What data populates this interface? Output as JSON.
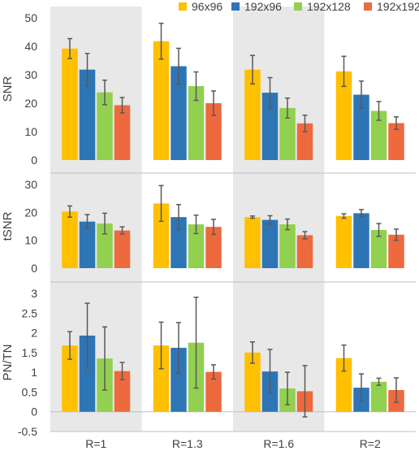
{
  "chart_data": {
    "type": "bar",
    "categories": [
      "R=1",
      "R=1.3",
      "R=1.6",
      "R=2"
    ],
    "legend": {
      "position": "top",
      "entries": [
        "96x96",
        "192x96",
        "192x128",
        "192x192"
      ]
    },
    "colors": [
      "#FFC000",
      "#2E75B6",
      "#92D050",
      "#ED6A3E"
    ],
    "error_bar_color": "#595959",
    "shading_color": "#E8E8E8",
    "shaded_categories": [
      "R=1",
      "R=1.6"
    ],
    "panels": [
      {
        "ylabel": "SNR",
        "ylim": [
          0,
          50
        ],
        "yticks": [
          0,
          10,
          20,
          30,
          40,
          50
        ],
        "yticklabels": [
          "0",
          "10",
          "20",
          "30",
          "40",
          "50"
        ],
        "series": [
          {
            "name": "96x96",
            "values": [
              39.2,
              41.8,
              31.8,
              31.2
            ],
            "errors": [
              3.5,
              6.3,
              5.0,
              5.3
            ]
          },
          {
            "name": "192x96",
            "values": [
              31.8,
              33.0,
              23.7,
              23.0
            ],
            "errors": [
              5.7,
              6.3,
              5.3,
              4.8
            ]
          },
          {
            "name": "192x128",
            "values": [
              23.8,
              26.0,
              18.3,
              17.3
            ],
            "errors": [
              4.3,
              5.0,
              3.5,
              3.3
            ]
          },
          {
            "name": "192x192",
            "values": [
              19.3,
              20.0,
              12.9,
              13.0
            ],
            "errors": [
              2.7,
              4.3,
              2.9,
              2.2
            ]
          }
        ]
      },
      {
        "ylabel": "tSNR",
        "ylim": [
          0,
          30
        ],
        "yticks": [
          0,
          10,
          20,
          30
        ],
        "yticklabels": [
          "0",
          "10",
          "20",
          "30"
        ],
        "series": [
          {
            "name": "96x96",
            "values": [
              20.3,
              23.2,
              18.3,
              18.7
            ],
            "errors": [
              2.0,
              6.4,
              0.4,
              0.8
            ]
          },
          {
            "name": "192x96",
            "values": [
              16.7,
              18.3,
              17.3,
              19.7
            ],
            "errors": [
              2.5,
              4.5,
              1.5,
              1.3
            ]
          },
          {
            "name": "192x128",
            "values": [
              16.0,
              15.7,
              15.7,
              13.7
            ],
            "errors": [
              3.7,
              3.3,
              1.9,
              2.3
            ]
          },
          {
            "name": "192x192",
            "values": [
              13.5,
              14.8,
              11.8,
              12.0
            ],
            "errors": [
              1.3,
              2.7,
              1.3,
              2.0
            ]
          }
        ]
      },
      {
        "ylabel": "PN/TN",
        "ylim": [
          -0.5,
          3
        ],
        "yticks": [
          -0.5,
          0,
          0.5,
          1,
          1.5,
          2,
          2.5,
          3
        ],
        "yticklabels": [
          "-0.5",
          "0",
          "0.5",
          "1",
          "1.5",
          "2",
          "2.5",
          "3"
        ],
        "series": [
          {
            "name": "96x96",
            "values": [
              1.68,
              1.68,
              1.5,
              1.36
            ],
            "errors": [
              0.35,
              0.59,
              0.27,
              0.33
            ]
          },
          {
            "name": "192x96",
            "values": [
              1.93,
              1.62,
              1.02,
              0.61
            ],
            "errors": [
              0.82,
              0.64,
              0.56,
              0.35
            ]
          },
          {
            "name": "192x128",
            "values": [
              1.35,
              1.75,
              0.59,
              0.76
            ],
            "errors": [
              0.8,
              1.15,
              0.41,
              0.09
            ]
          },
          {
            "name": "192x192",
            "values": [
              1.03,
              1.01,
              0.52,
              0.55
            ],
            "errors": [
              0.22,
              0.18,
              0.65,
              0.31
            ]
          }
        ]
      }
    ]
  }
}
